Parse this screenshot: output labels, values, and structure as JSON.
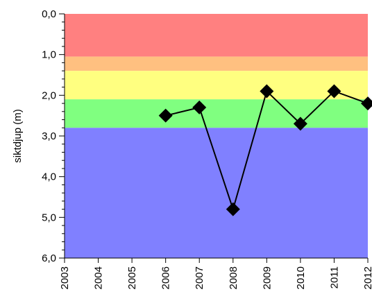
{
  "chart_data": {
    "type": "line",
    "ylabel": "siktdjup (m)",
    "ylim": [
      6.0,
      0.0
    ],
    "y_inverted": true,
    "y_ticks": [
      "0,0",
      "1,0",
      "2,0",
      "3,0",
      "4,0",
      "5,0",
      "6,0"
    ],
    "y_tick_values": [
      0,
      1,
      2,
      3,
      4,
      5,
      6
    ],
    "xlim": [
      2003,
      2012
    ],
    "x_ticks": [
      "2003",
      "2004",
      "2005",
      "2006",
      "2007",
      "2008",
      "2009",
      "2010",
      "2011",
      "2012"
    ],
    "x_tick_values": [
      2003,
      2004,
      2005,
      2006,
      2007,
      2008,
      2009,
      2010,
      2011,
      2012
    ],
    "series": [
      {
        "marker": "diamond",
        "color": "#000000",
        "x": [
          2006,
          2007,
          2008,
          2009,
          2010,
          2011,
          2012
        ],
        "y": [
          2.5,
          2.3,
          4.8,
          1.9,
          2.7,
          1.9,
          2.2
        ]
      }
    ],
    "bands": [
      {
        "from": 0.0,
        "to": 1.05,
        "color": "#ff8080"
      },
      {
        "from": 1.05,
        "to": 1.4,
        "color": "#ffc080"
      },
      {
        "from": 1.4,
        "to": 2.1,
        "color": "#ffff80"
      },
      {
        "from": 2.1,
        "to": 2.8,
        "color": "#80ff80"
      },
      {
        "from": 2.8,
        "to": 6.0,
        "color": "#8080ff"
      }
    ],
    "grid": false,
    "legend": "none"
  }
}
